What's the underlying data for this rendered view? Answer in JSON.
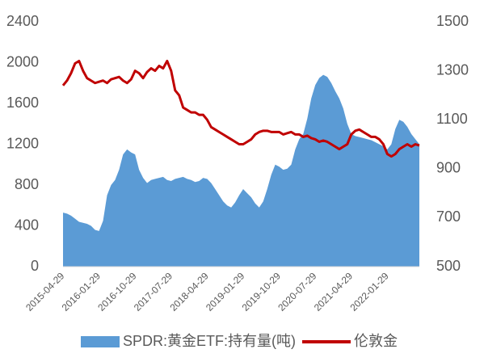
{
  "chart_data": {
    "type": "area-line",
    "categories": [
      "2015-04-29",
      null,
      null,
      null,
      null,
      null,
      null,
      null,
      null,
      "2016-01-29",
      null,
      null,
      null,
      null,
      null,
      null,
      null,
      null,
      "2016-10-29",
      null,
      null,
      null,
      null,
      null,
      null,
      null,
      null,
      "2017-07-29",
      null,
      null,
      null,
      null,
      null,
      null,
      null,
      null,
      "2018-04-29",
      null,
      null,
      null,
      null,
      null,
      null,
      null,
      null,
      "2019-01-29",
      null,
      null,
      null,
      null,
      null,
      null,
      null,
      null,
      "2019-10-29",
      null,
      null,
      null,
      null,
      null,
      null,
      null,
      null,
      "2020-07-29",
      null,
      null,
      null,
      null,
      null,
      null,
      null,
      null,
      "2021-04-29",
      null,
      null,
      null,
      null,
      null,
      null,
      null,
      null,
      "2022-01-29",
      null,
      null,
      null,
      null,
      null,
      null,
      null,
      null
    ],
    "series": [
      {
        "name": "SPDR:黄金ETF:持有量(吨)",
        "color": "#5b9bd5",
        "kind": "area",
        "axis": "y",
        "values": [
          530,
          520,
          500,
          470,
          440,
          430,
          420,
          400,
          360,
          350,
          450,
          700,
          800,
          850,
          950,
          1100,
          1150,
          1120,
          1100,
          950,
          870,
          820,
          850,
          860,
          870,
          880,
          850,
          840,
          860,
          870,
          880,
          860,
          850,
          830,
          840,
          870,
          860,
          820,
          760,
          700,
          640,
          600,
          580,
          630,
          700,
          760,
          720,
          680,
          620,
          580,
          640,
          760,
          900,
          1000,
          980,
          950,
          960,
          1000,
          1150,
          1250,
          1300,
          1450,
          1650,
          1780,
          1850,
          1880,
          1860,
          1800,
          1720,
          1650,
          1550,
          1400,
          1300,
          1280,
          1270,
          1260,
          1250,
          1240,
          1220,
          1200,
          1180,
          1150,
          1200,
          1350,
          1440,
          1420,
          1370,
          1300,
          1250,
          1200
        ]
      },
      {
        "name": "伦敦金",
        "color": "#c00000",
        "kind": "line",
        "axis": "y2",
        "values": [
          1240,
          1260,
          1290,
          1330,
          1340,
          1300,
          1270,
          1260,
          1250,
          1255,
          1260,
          1250,
          1265,
          1270,
          1275,
          1260,
          1250,
          1265,
          1300,
          1290,
          1270,
          1295,
          1310,
          1300,
          1320,
          1310,
          1340,
          1300,
          1220,
          1200,
          1150,
          1140,
          1130,
          1130,
          1120,
          1120,
          1100,
          1070,
          1060,
          1050,
          1040,
          1030,
          1020,
          1010,
          1000,
          1000,
          1010,
          1020,
          1040,
          1050,
          1055,
          1055,
          1050,
          1050,
          1050,
          1040,
          1045,
          1050,
          1040,
          1040,
          1030,
          1035,
          1025,
          1020,
          1010,
          1015,
          1010,
          1000,
          990,
          980,
          990,
          1000,
          1040,
          1055,
          1060,
          1050,
          1040,
          1030,
          1030,
          1020,
          1000,
          960,
          950,
          960,
          980,
          990,
          1000,
          990,
          1000,
          995
        ]
      }
    ],
    "ylim": [
      0,
      2400
    ],
    "yticks": [
      0,
      400,
      800,
      1200,
      1600,
      2000,
      2400
    ],
    "y2lim": [
      500,
      1500
    ],
    "y2ticks": [
      500,
      700,
      900,
      1100,
      1300,
      1500
    ],
    "grid": false,
    "legend": "bottom"
  }
}
